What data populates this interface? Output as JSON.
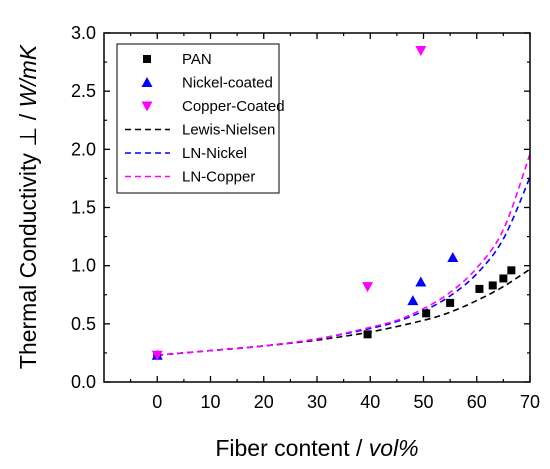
{
  "chart_data": {
    "type": "scatter",
    "xlabel": "Fiber content  /  vol%",
    "xlabel_main": "Fiber content  /  ",
    "xlabel_unit": "vol%",
    "ylabel": "Thermal Conductivity ⊥  /  W/mK",
    "ylabel_main": "Thermal Conductivity ⊥  /  ",
    "ylabel_unit": "W/mK",
    "xlim": [
      -10,
      70
    ],
    "ylim": [
      0,
      3.0
    ],
    "x_ticks": [
      0,
      10,
      20,
      30,
      40,
      50,
      60,
      70
    ],
    "y_ticks": [
      0.0,
      0.5,
      1.0,
      1.5,
      2.0,
      2.5,
      3.0
    ],
    "y_tick_labels": [
      "0.0",
      "0.5",
      "1.0",
      "1.5",
      "2.0",
      "2.5",
      "3.0"
    ],
    "grid": false,
    "legend_position": "top-left",
    "series": [
      {
        "name": "PAN",
        "marker": "square",
        "color": "#000000",
        "points": [
          [
            0,
            0.23
          ],
          [
            39.5,
            0.41
          ],
          [
            50.5,
            0.59
          ],
          [
            55,
            0.68
          ],
          [
            60.5,
            0.8
          ],
          [
            63,
            0.83
          ],
          [
            65,
            0.89
          ],
          [
            66.5,
            0.96
          ]
        ]
      },
      {
        "name": "Nickel-coated",
        "marker": "triangle-up",
        "color": "#0000ff",
        "points": [
          [
            0,
            0.23
          ],
          [
            48,
            0.7
          ],
          [
            49.5,
            0.86
          ],
          [
            55.5,
            1.07
          ]
        ]
      },
      {
        "name": "Copper-Coated",
        "marker": "triangle-down",
        "color": "#ff00ff",
        "points": [
          [
            0,
            0.23
          ],
          [
            39.5,
            0.82
          ],
          [
            49.5,
            2.85
          ]
        ]
      }
    ],
    "curves": [
      {
        "name": "Lewis-Nielsen",
        "style": "dashed",
        "color": "#000000",
        "points": [
          [
            0,
            0.23
          ],
          [
            10,
            0.27
          ],
          [
            20,
            0.31
          ],
          [
            30,
            0.36
          ],
          [
            40,
            0.43
          ],
          [
            50,
            0.53
          ],
          [
            55,
            0.6
          ],
          [
            60,
            0.7
          ],
          [
            65,
            0.82
          ],
          [
            70,
            0.97
          ]
        ]
      },
      {
        "name": "LN-Nickel",
        "style": "dashed",
        "color": "#0000ff",
        "points": [
          [
            0,
            0.23
          ],
          [
            10,
            0.27
          ],
          [
            20,
            0.31
          ],
          [
            30,
            0.37
          ],
          [
            40,
            0.46
          ],
          [
            45,
            0.52
          ],
          [
            50,
            0.61
          ],
          [
            55,
            0.74
          ],
          [
            60,
            0.93
          ],
          [
            65,
            1.23
          ],
          [
            70,
            1.76
          ]
        ]
      },
      {
        "name": "LN-Copper",
        "style": "dashed",
        "color": "#ff00ff",
        "points": [
          [
            0,
            0.23
          ],
          [
            10,
            0.27
          ],
          [
            20,
            0.31
          ],
          [
            30,
            0.37
          ],
          [
            40,
            0.47
          ],
          [
            45,
            0.53
          ],
          [
            50,
            0.63
          ],
          [
            55,
            0.77
          ],
          [
            60,
            0.98
          ],
          [
            65,
            1.31
          ],
          [
            70,
            1.96
          ]
        ]
      }
    ]
  }
}
